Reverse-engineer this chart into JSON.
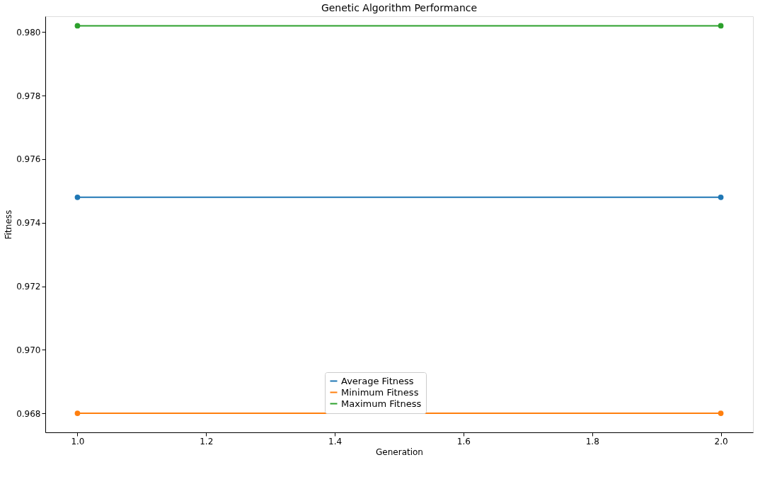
{
  "chart_data": {
    "type": "line",
    "title": "Genetic Algorithm Performance",
    "xlabel": "Generation",
    "ylabel": "Fitness",
    "x": [
      1,
      2
    ],
    "series": [
      {
        "name": "Average Fitness",
        "color": "#1f77b4",
        "values": [
          0.9748,
          0.9748
        ]
      },
      {
        "name": "Minimum Fitness",
        "color": "#ff7f0e",
        "values": [
          0.968,
          0.968
        ]
      },
      {
        "name": "Maximum Fitness",
        "color": "#2ca02c",
        "values": [
          0.9802,
          0.9802
        ]
      }
    ],
    "xlim": [
      0.95,
      2.05
    ],
    "ylim": [
      0.9674,
      0.9805
    ],
    "xticks": [
      {
        "value": 1,
        "label": "1.0"
      },
      {
        "value": 1.2,
        "label": "1.2"
      },
      {
        "value": 1.4,
        "label": "1.4"
      },
      {
        "value": 1.6,
        "label": "1.6"
      },
      {
        "value": 1.8,
        "label": "1.8"
      },
      {
        "value": 2,
        "label": "2.0"
      }
    ],
    "yticks": [
      0.968,
      {
        "value": 0.97,
        "label": "0.970"
      },
      0.972,
      0.974,
      0.976,
      0.978,
      {
        "value": 0.98,
        "label": "0.980"
      }
    ],
    "grid": false,
    "legend": "bottom",
    "marker": "circle",
    "line_style": "solid"
  }
}
